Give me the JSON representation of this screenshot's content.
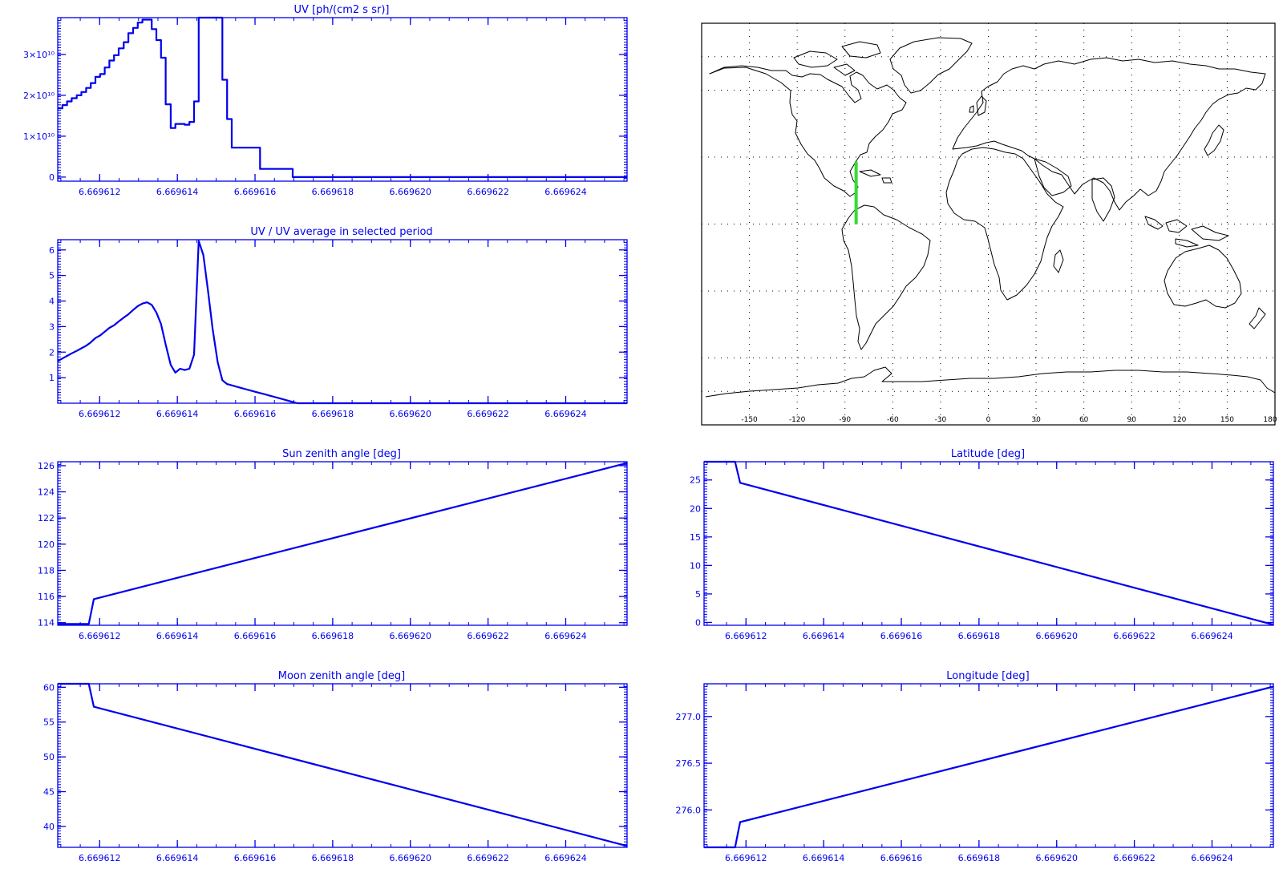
{
  "colors": {
    "axis": "#0000ee",
    "series": "#0000ee",
    "map_coast": "#000000",
    "map_track": "#33dd33",
    "map_grid": "#000000"
  },
  "x_tick_labels": [
    "6.669612",
    "6.669614",
    "6.669616",
    "6.669618",
    "6.669620",
    "6.669622",
    "6.669624"
  ],
  "map": {
    "projection": "cylindrical equidistant",
    "xlim": [
      -180,
      180
    ],
    "ylim": [
      -90,
      90
    ],
    "lon_ticks": [
      -150,
      -120,
      -90,
      -60,
      -30,
      0,
      30,
      60,
      90,
      120,
      150,
      180
    ],
    "lon_tick_labels": [
      "-150",
      "-120",
      "-90",
      "-60",
      "-30",
      "0",
      "30",
      "60",
      "90",
      "120",
      "150",
      "180"
    ],
    "grid": "dotted, every 30 deg lon and 30 deg lat",
    "track": {
      "lon": [
        -83,
        -83
      ],
      "lat": [
        28,
        0
      ]
    }
  },
  "chart_data": [
    {
      "id": "uv",
      "type": "line",
      "style": "step",
      "title": "UV [ph/(cm2 s sr)]",
      "xlim": [
        6.66961092,
        6.66962558
      ],
      "ylim": [
        -0.1,
        3.9
      ],
      "y_scale_note": "x10^10",
      "y_ticks": [
        0,
        1,
        2,
        3
      ],
      "y_tick_labels": [
        "0",
        "1×10¹⁰",
        "2×10¹⁰",
        "3×10¹⁰"
      ],
      "x_ticks": [
        6.669612,
        6.669614,
        6.669616,
        6.669618,
        6.66962,
        6.669622,
        6.669624
      ],
      "x": [
        6.66961092,
        6.66961104,
        6.66961116,
        6.66961128,
        6.66961141,
        6.66961153,
        6.66961165,
        6.66961177,
        6.66961189,
        6.66961201,
        6.66961213,
        6.66961225,
        6.66961237,
        6.66961249,
        6.66961262,
        6.66961274,
        6.66961286,
        6.66961298,
        6.6696131,
        6.66961322,
        6.66961334,
        6.66961346,
        6.66961358,
        6.6696137,
        6.66961383,
        6.66961395,
        6.66961407,
        6.66961419,
        6.66961431,
        6.66961443,
        6.66961455,
        6.66961467,
        6.66961479,
        6.66961491,
        6.66961504,
        6.66961516,
        6.66961528,
        6.6696154,
        6.66961552,
        6.66961564,
        6.66961576,
        6.66961588,
        6.669616,
        6.66961613,
        6.66961625,
        6.66961637,
        6.66961649,
        6.66961661,
        6.66961673,
        6.66961685,
        6.66961697,
        6.66961709,
        6.66961721,
        6.66961734,
        6.66962558
      ],
      "y": [
        1.68,
        1.76,
        1.85,
        1.93,
        2.0,
        2.08,
        2.18,
        2.3,
        2.45,
        2.52,
        2.68,
        2.85,
        2.98,
        3.15,
        3.3,
        3.52,
        3.65,
        3.78,
        3.85,
        3.85,
        3.62,
        3.35,
        2.92,
        1.78,
        1.2,
        1.3,
        1.3,
        1.28,
        1.35,
        1.85,
        3.9,
        3.9,
        3.9,
        3.9,
        3.9,
        2.38,
        1.42,
        0.72,
        0.72,
        0.72,
        0.72,
        0.72,
        0.72,
        0.2,
        0.2,
        0.2,
        0.2,
        0.2,
        0.2,
        0.2,
        0.0,
        0.0,
        0.0,
        0.0,
        0.0
      ]
    },
    {
      "id": "uv-ratio",
      "type": "line",
      "title": "UV / UV average in selected period",
      "xlim": [
        6.66961092,
        6.66962558
      ],
      "ylim": [
        0,
        6.4
      ],
      "y_ticks": [
        1,
        2,
        3,
        4,
        5,
        6
      ],
      "y_tick_labels": [
        "1",
        "2",
        "3",
        "4",
        "5",
        "6"
      ],
      "x_ticks": [
        6.669612,
        6.669614,
        6.669616,
        6.669618,
        6.66962,
        6.669622,
        6.669624
      ],
      "x": [
        6.66961092,
        6.66961104,
        6.66961116,
        6.66961128,
        6.66961141,
        6.66961153,
        6.66961165,
        6.66961177,
        6.66961189,
        6.66961201,
        6.66961213,
        6.66961225,
        6.66961237,
        6.66961249,
        6.66961262,
        6.66961274,
        6.66961286,
        6.66961298,
        6.6696131,
        6.66961322,
        6.66961334,
        6.66961346,
        6.66961358,
        6.6696137,
        6.66961383,
        6.66961395,
        6.66961407,
        6.66961419,
        6.66961431,
        6.66961443,
        6.66961455,
        6.66961467,
        6.66961479,
        6.66961491,
        6.66961504,
        6.66961516,
        6.66961528,
        6.6696154,
        6.66961552,
        6.66961564,
        6.66961576,
        6.66961588,
        6.669616,
        6.66961613,
        6.66961625,
        6.66961637,
        6.66961649,
        6.66961661,
        6.66961673,
        6.66961685,
        6.66961697,
        6.66961709,
        6.66961721,
        6.66961734,
        6.66962558
      ],
      "y": [
        1.65,
        1.75,
        1.85,
        1.95,
        2.05,
        2.15,
        2.25,
        2.38,
        2.55,
        2.65,
        2.8,
        2.95,
        3.05,
        3.2,
        3.35,
        3.48,
        3.65,
        3.8,
        3.9,
        3.95,
        3.85,
        3.55,
        3.1,
        2.3,
        1.5,
        1.2,
        1.35,
        1.3,
        1.35,
        1.9,
        6.35,
        5.8,
        4.4,
        2.9,
        1.6,
        0.9,
        0.75,
        0.7,
        0.65,
        0.6,
        0.55,
        0.5,
        0.45,
        0.4,
        0.35,
        0.3,
        0.25,
        0.2,
        0.15,
        0.1,
        0.05,
        0.0,
        0.0,
        0.0,
        0.0
      ]
    },
    {
      "id": "sun-zenith",
      "type": "line",
      "title": "Sun zenith angle [deg]",
      "xlim": [
        6.66961092,
        6.66962558
      ],
      "ylim": [
        113.8,
        126.3
      ],
      "y_ticks": [
        114,
        116,
        118,
        120,
        122,
        124,
        126
      ],
      "y_tick_labels": [
        "114",
        "116",
        "118",
        "120",
        "122",
        "124",
        "126"
      ],
      "x_ticks": [
        6.669612,
        6.669614,
        6.669616,
        6.669618,
        6.66962,
        6.669622,
        6.669624
      ],
      "x": [
        6.66961092,
        6.66961172,
        6.66961185,
        6.66962558
      ],
      "y": [
        113.9,
        113.9,
        115.8,
        126.2
      ]
    },
    {
      "id": "latitude",
      "type": "line",
      "title": "Latitude [deg]",
      "xlim": [
        6.66961092,
        6.66962558
      ],
      "ylim": [
        -0.5,
        28.2
      ],
      "y_ticks": [
        0,
        5,
        10,
        15,
        20,
        25
      ],
      "y_tick_labels": [
        "0",
        "5",
        "10",
        "15",
        "20",
        "25"
      ],
      "x_ticks": [
        6.669612,
        6.669614,
        6.669616,
        6.669618,
        6.66962,
        6.669622,
        6.669624
      ],
      "x": [
        6.66961092,
        6.66961172,
        6.66961185,
        6.66962558
      ],
      "y": [
        28.2,
        28.2,
        24.5,
        -0.4
      ]
    },
    {
      "id": "moon-zenith",
      "type": "line",
      "title": "Moon zenith angle [deg]",
      "xlim": [
        6.66961092,
        6.66962558
      ],
      "ylim": [
        37,
        60.5
      ],
      "y_ticks": [
        40,
        45,
        50,
        55,
        60
      ],
      "y_tick_labels": [
        "40",
        "45",
        "50",
        "55",
        "60"
      ],
      "x_ticks": [
        6.669612,
        6.669614,
        6.669616,
        6.669618,
        6.66962,
        6.669622,
        6.669624
      ],
      "x": [
        6.66961092,
        6.66961172,
        6.66961185,
        6.66962558
      ],
      "y": [
        60.5,
        60.5,
        57.2,
        37.2
      ]
    },
    {
      "id": "longitude",
      "type": "line",
      "title": "Longitude [deg]",
      "xlim": [
        6.66961092,
        6.66962558
      ],
      "ylim": [
        275.6,
        277.35
      ],
      "y_ticks": [
        276.0,
        276.5,
        277.0
      ],
      "y_tick_labels": [
        "276.0",
        "276.5",
        "277.0"
      ],
      "x_ticks": [
        6.669612,
        6.669614,
        6.669616,
        6.669618,
        6.66962,
        6.669622,
        6.669624
      ],
      "x": [
        6.66961092,
        6.66961172,
        6.66961185,
        6.66962558
      ],
      "y": [
        275.6,
        275.6,
        275.87,
        277.32
      ]
    }
  ]
}
